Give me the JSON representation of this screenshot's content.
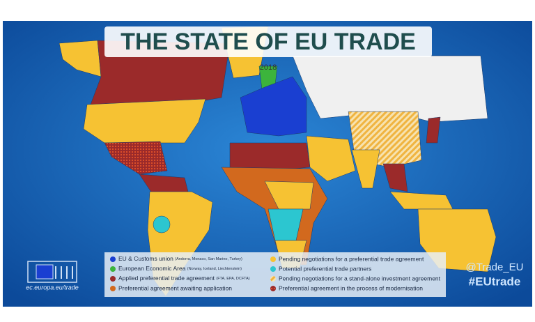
{
  "header": {
    "title": "THE STATE OF EU TRADE",
    "year": "2018"
  },
  "legend": {
    "items": [
      {
        "label": "EU & Customs union",
        "note": "(Andorra, Monaco, San Marino, Turkey)"
      },
      {
        "label": "European Economic Area",
        "note": "(Norway, Iceland, Liechtenstein)"
      },
      {
        "label": "Applied preferential trade agreement",
        "note": "(FTA, EPA, DCFTA)"
      },
      {
        "label": "Preferential agreement awaiting application"
      },
      {
        "label": "Pending negotiations for a preferential trade agreement"
      },
      {
        "label": "Potential preferential trade partners"
      },
      {
        "label": "Pending negotiations for a stand-alone investment agreement"
      },
      {
        "label": "Preferential agreement in the process of modernisation"
      }
    ]
  },
  "footer": {
    "website": "ec.europa.eu/trade",
    "handle": "@Trade_EU",
    "hashtag": "#EUtrade"
  }
}
